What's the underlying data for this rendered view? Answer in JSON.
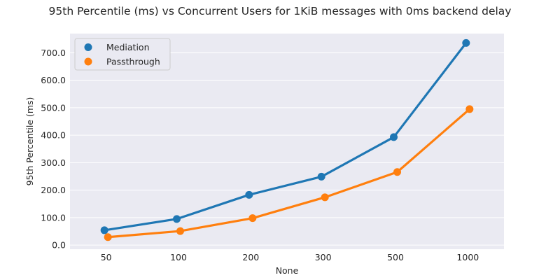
{
  "chart_data": {
    "type": "line",
    "title": "95th Percentile (ms) vs Concurrent Users for 1KiB messages with 0ms backend delay",
    "xlabel": "None",
    "ylabel": "95th Percentile (ms)",
    "categories": [
      "50",
      "100",
      "200",
      "300",
      "500",
      "1000"
    ],
    "ylim": [
      -15,
      770
    ],
    "yticks": [
      0,
      100,
      200,
      300,
      400,
      500,
      600,
      700
    ],
    "ytick_labels": [
      "0.0",
      "100.0",
      "200.0",
      "300.0",
      "400.0",
      "500.0",
      "600.0",
      "700.0"
    ],
    "grid": true,
    "legend_position": "top-left",
    "series": [
      {
        "name": "Mediation",
        "color": "#1f77b4",
        "values": [
          54,
          95,
          183,
          249,
          393,
          736
        ]
      },
      {
        "name": "Passthrough",
        "color": "#ff7f0e",
        "values": [
          29,
          51,
          98,
          174,
          266,
          495
        ]
      }
    ]
  }
}
